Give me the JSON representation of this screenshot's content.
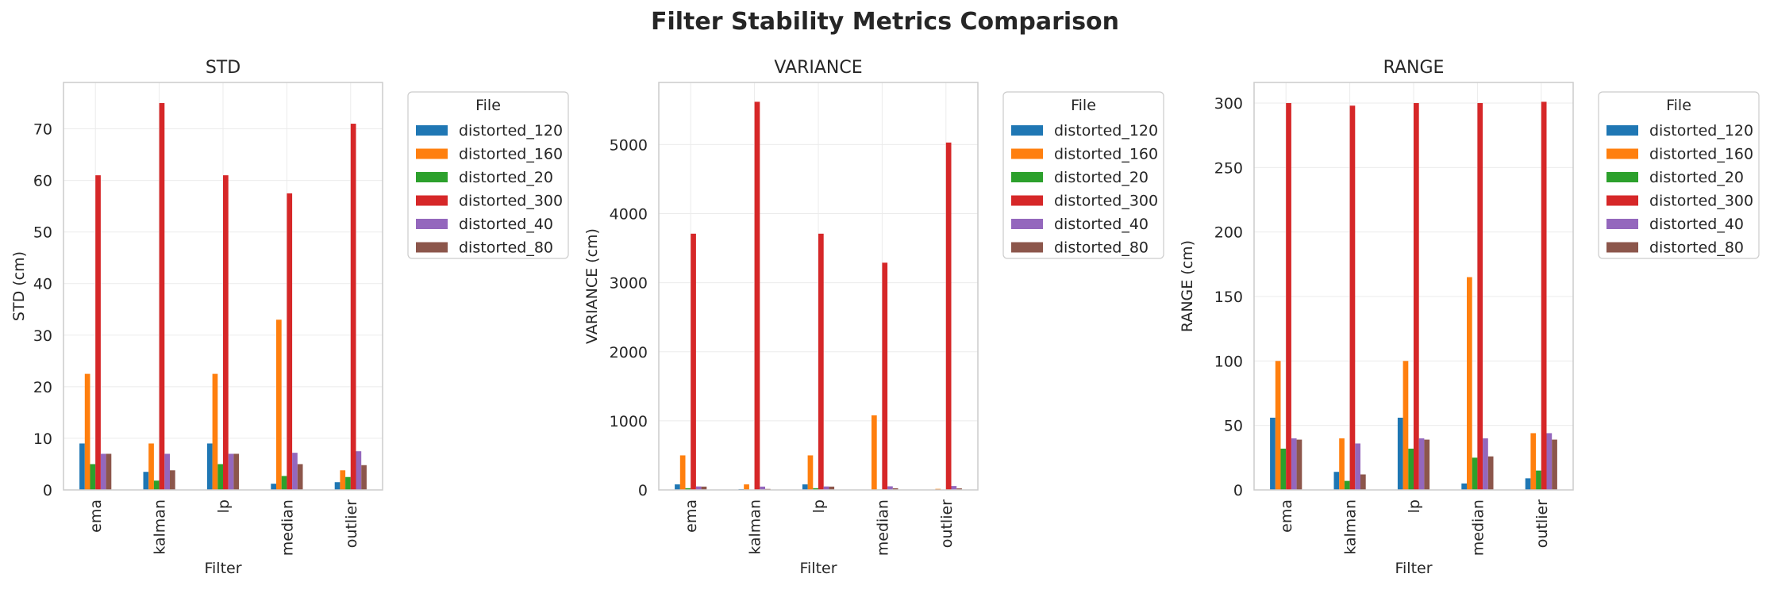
{
  "suptitle": "Filter Stability Metrics Comparison",
  "chart_data": [
    {
      "type": "bar",
      "title": "STD",
      "xlabel": "Filter",
      "ylabel": "STD (cm)",
      "categories": [
        "ema",
        "kalman",
        "lp",
        "median",
        "outlier"
      ],
      "ylim": [
        0,
        79
      ],
      "yticks": [
        0,
        10,
        20,
        30,
        40,
        50,
        60,
        70
      ],
      "grid": true,
      "legend_title": "File",
      "legend_position": "outside-right",
      "series": [
        {
          "name": "distorted_120",
          "color": "#1f77b4",
          "values": [
            9,
            3.5,
            9,
            1.2,
            1.5
          ]
        },
        {
          "name": "distorted_160",
          "color": "#ff7f0e",
          "values": [
            22.5,
            9,
            22.5,
            33,
            3.8
          ]
        },
        {
          "name": "distorted_20",
          "color": "#2ca02c",
          "values": [
            5,
            1.8,
            5,
            2.7,
            2.5
          ]
        },
        {
          "name": "distorted_300",
          "color": "#d62728",
          "values": [
            61,
            75,
            61,
            57.5,
            71
          ]
        },
        {
          "name": "distorted_40",
          "color": "#9467bd",
          "values": [
            7,
            7,
            7,
            7.2,
            7.5
          ]
        },
        {
          "name": "distorted_80",
          "color": "#8c564b",
          "values": [
            7,
            3.8,
            7,
            5,
            4.8
          ]
        }
      ]
    },
    {
      "type": "bar",
      "title": "VARIANCE",
      "xlabel": "Filter",
      "ylabel": "VARIANCE (cm)",
      "categories": [
        "ema",
        "kalman",
        "lp",
        "median",
        "outlier"
      ],
      "ylim": [
        0,
        5900
      ],
      "yticks": [
        0,
        1000,
        2000,
        3000,
        4000,
        5000
      ],
      "grid": true,
      "legend_title": "File",
      "legend_position": "outside-right",
      "series": [
        {
          "name": "distorted_120",
          "color": "#1f77b4",
          "values": [
            80,
            12,
            80,
            2,
            3
          ]
        },
        {
          "name": "distorted_160",
          "color": "#ff7f0e",
          "values": [
            500,
            80,
            500,
            1080,
            15
          ]
        },
        {
          "name": "distorted_20",
          "color": "#2ca02c",
          "values": [
            25,
            3,
            25,
            7,
            6
          ]
        },
        {
          "name": "distorted_300",
          "color": "#d62728",
          "values": [
            3710,
            5620,
            3710,
            3290,
            5030
          ]
        },
        {
          "name": "distorted_40",
          "color": "#9467bd",
          "values": [
            50,
            48,
            50,
            52,
            56
          ]
        },
        {
          "name": "distorted_80",
          "color": "#8c564b",
          "values": [
            48,
            14,
            48,
            24,
            22
          ]
        }
      ]
    },
    {
      "type": "bar",
      "title": "RANGE",
      "xlabel": "Filter",
      "ylabel": "RANGE (cm)",
      "categories": [
        "ema",
        "kalman",
        "lp",
        "median",
        "outlier"
      ],
      "ylim": [
        0,
        316
      ],
      "yticks": [
        0,
        50,
        100,
        150,
        200,
        250,
        300
      ],
      "grid": true,
      "legend_title": "File",
      "legend_position": "outside-right",
      "series": [
        {
          "name": "distorted_120",
          "color": "#1f77b4",
          "values": [
            56,
            14,
            56,
            5,
            9
          ]
        },
        {
          "name": "distorted_160",
          "color": "#ff7f0e",
          "values": [
            100,
            40,
            100,
            165,
            44
          ]
        },
        {
          "name": "distorted_20",
          "color": "#2ca02c",
          "values": [
            32,
            7,
            32,
            25,
            15
          ]
        },
        {
          "name": "distorted_300",
          "color": "#d62728",
          "values": [
            300,
            298,
            300,
            300,
            301
          ]
        },
        {
          "name": "distorted_40",
          "color": "#9467bd",
          "values": [
            40,
            36,
            40,
            40,
            44
          ]
        },
        {
          "name": "distorted_80",
          "color": "#8c564b",
          "values": [
            39,
            12,
            39,
            26,
            39
          ]
        }
      ]
    }
  ]
}
